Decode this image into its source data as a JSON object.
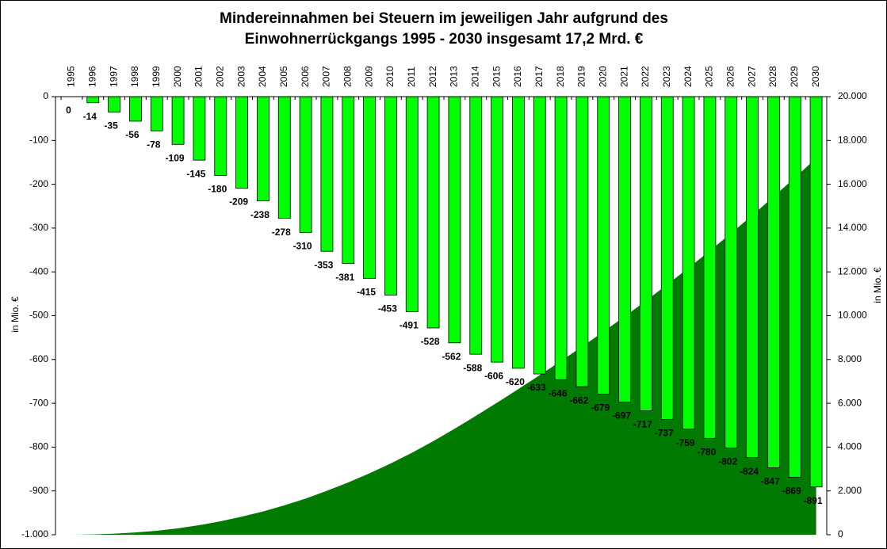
{
  "chart_data": {
    "type": "bar",
    "title": "Mindereinnahmen bei Steuern im jeweiligen Jahr aufgrund des",
    "subtitle": "Einwohnerrückgangs 1995 - 2030 insgesamt 17,2 Mrd. €",
    "y_label": "in Mio. €",
    "y2_label": "in Mio. €",
    "categories": [
      "1995",
      "1996",
      "1997",
      "1998",
      "1999",
      "2000",
      "2001",
      "2002",
      "2003",
      "2004",
      "2005",
      "2006",
      "2007",
      "2008",
      "2009",
      "2010",
      "2011",
      "2012",
      "2013",
      "2014",
      "2015",
      "2016",
      "2017",
      "2018",
      "2019",
      "2020",
      "2021",
      "2022",
      "2023",
      "2024",
      "2025",
      "2026",
      "2027",
      "2028",
      "2029",
      "2030"
    ],
    "series": [
      {
        "type": "bar",
        "color": "#00ff00",
        "values": [
          0,
          -14,
          -35,
          -56,
          -78,
          -109,
          -145,
          -180,
          -209,
          -238,
          -278,
          -310,
          -353,
          -381,
          -415,
          -453,
          -491,
          -528,
          -562,
          -588,
          -606,
          -620,
          -633,
          -646,
          -662,
          -679,
          -697,
          -717,
          -737,
          -759,
          -780,
          -802,
          -824,
          -847,
          -869,
          -891
        ]
      },
      {
        "type": "area",
        "axis": "y2",
        "color": "#007a00",
        "values": [
          0,
          14,
          49,
          105,
          183,
          292,
          437,
          617,
          826,
          1064,
          1342,
          1652,
          2005,
          2386,
          2801,
          3254,
          3745,
          4273,
          4835,
          5423,
          6029,
          6649,
          7282,
          7928,
          8590,
          9269,
          9966,
          10683,
          11420,
          12179,
          12959,
          13761,
          14585,
          15432,
          16301,
          17192
        ]
      }
    ],
    "ylim": [
      -1000,
      0
    ],
    "yticks": [
      0,
      -100,
      -200,
      -300,
      -400,
      -500,
      -600,
      -700,
      -800,
      -900,
      {
        "value": -1000,
        "label": "-1.000"
      }
    ],
    "y2lim": [
      0,
      20000
    ],
    "y2ticks": [
      0,
      {
        "value": 2000,
        "label": "2.000"
      },
      {
        "value": 4000,
        "label": "4.000"
      },
      {
        "value": 6000,
        "label": "6.000"
      },
      {
        "value": 8000,
        "label": "8.000"
      },
      {
        "value": 10000,
        "label": "10.000"
      },
      {
        "value": 12000,
        "label": "12.000"
      },
      {
        "value": 14000,
        "label": "14.000"
      },
      {
        "value": 16000,
        "label": "16.000"
      },
      {
        "value": 18000,
        "label": "18.000"
      },
      {
        "value": 20000,
        "label": "20.000"
      }
    ]
  }
}
